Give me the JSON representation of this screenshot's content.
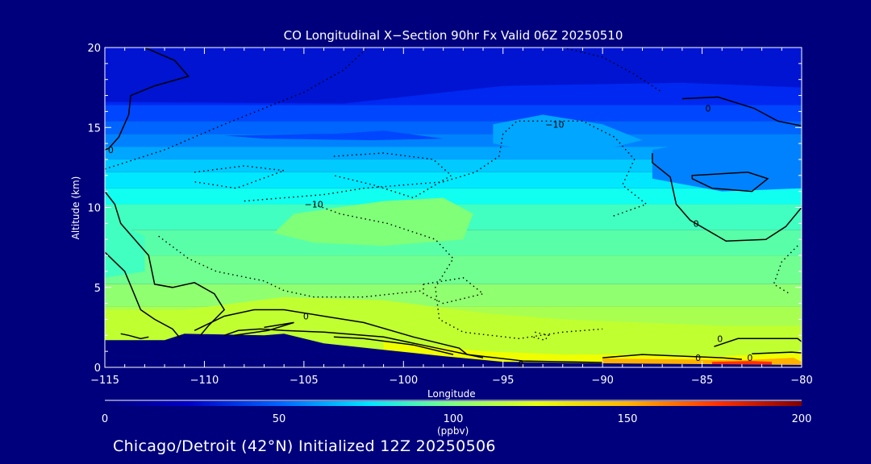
{
  "chart_data": {
    "type": "heatmap",
    "title": "CO Longitudinal X−Section 90hr  Fx Valid 06Z 20250510",
    "xlabel": "Longitude",
    "ylabel": "Altitude (km)",
    "xlim": [
      -115,
      -80
    ],
    "ylim": [
      0,
      20
    ],
    "x_ticks": [
      {
        "value": -115,
        "label": "−115"
      },
      {
        "value": -110,
        "label": "−110"
      },
      {
        "value": -105,
        "label": "−105"
      },
      {
        "value": -100,
        "label": "−100"
      },
      {
        "value": -95,
        "label": "−95"
      },
      {
        "value": -90,
        "label": "−90"
      },
      {
        "value": -85,
        "label": "−85"
      },
      {
        "value": -80,
        "label": "−80"
      }
    ],
    "y_ticks": [
      {
        "value": 0,
        "label": "0"
      },
      {
        "value": 5,
        "label": "5"
      },
      {
        "value": 10,
        "label": "10"
      },
      {
        "value": 15,
        "label": "15"
      },
      {
        "value": 20,
        "label": "20"
      }
    ],
    "colorbar": {
      "range": [
        0,
        200
      ],
      "ticks": [
        {
          "value": 0,
          "label": "0"
        },
        {
          "value": 50,
          "label": "50"
        },
        {
          "value": 100,
          "label": "100"
        },
        {
          "value": 150,
          "label": "150"
        },
        {
          "value": 200,
          "label": "200"
        }
      ],
      "unit": "(ppbv)"
    },
    "contour_labels": [
      {
        "text": "0",
        "lon": -114.7,
        "alt": 13.6
      },
      {
        "text": "0",
        "lon": -84.7,
        "alt": 16.2
      },
      {
        "text": "−10",
        "lon": -92.4,
        "alt": 15.2
      },
      {
        "text": "−10",
        "lon": -104.5,
        "alt": 10.2
      },
      {
        "text": "0",
        "lon": -85.3,
        "alt": 9.0
      },
      {
        "text": "0",
        "lon": -104.9,
        "alt": 3.2
      },
      {
        "text": "0",
        "lon": -84.1,
        "alt": 1.8
      },
      {
        "text": "0",
        "lon": -82.6,
        "alt": 0.6
      },
      {
        "text": "0",
        "lon": -85.2,
        "alt": 0.6
      },
      {
        "text": "0",
        "lon": -94.1,
        "alt": 0.2
      }
    ],
    "terrain": [
      [
        -115,
        1.7
      ],
      [
        -112.5,
        1.7
      ],
      [
        -112,
        1.7
      ],
      [
        -111,
        2.1
      ],
      [
        -107,
        2.0
      ],
      [
        -106,
        2.1
      ],
      [
        -104,
        1.5
      ],
      [
        -101,
        1.1
      ],
      [
        -98,
        0.7
      ],
      [
        -95,
        0.35
      ],
      [
        -90,
        0.25
      ],
      [
        -85,
        0.2
      ],
      [
        -80,
        0.15
      ]
    ]
  },
  "footer": "Chicago/Detroit (42°N) Initialized 12Z 20250506",
  "colors": {
    "background": "#00007d",
    "frame": "#ffffff",
    "terrain": "#00007d",
    "contour": "#000000"
  }
}
